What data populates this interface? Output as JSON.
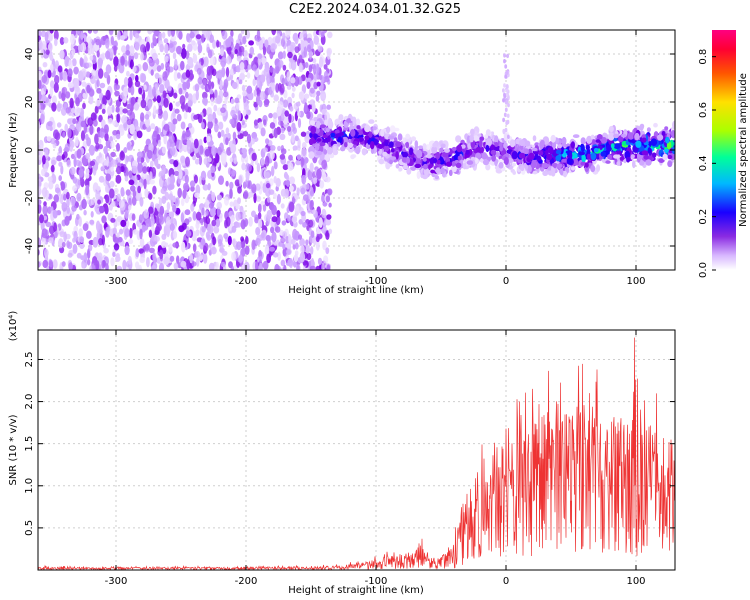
{
  "title": "C2E2.2024.034.01.32.G25",
  "chart_data": [
    {
      "type": "heatmap",
      "xlabel": "Height of straight line (km)",
      "ylabel": "Frequency (Hz)",
      "xlim": [
        -360,
        130
      ],
      "ylim": [
        -50,
        50
      ],
      "x_ticks": [
        -300,
        -200,
        -100,
        0,
        100
      ],
      "y_ticks": [
        -40,
        -20,
        0,
        20,
        40
      ],
      "colorbar": {
        "label": "Normalized spectral amplitude",
        "range": [
          0,
          0.9
        ],
        "ticks": [
          "0.0",
          "0.2",
          "0.4",
          "0.6",
          "0.8"
        ],
        "colormap": [
          "#ffffff",
          "#c89bff",
          "#7b00e6",
          "#1a00ff",
          "#00ccff",
          "#00ff66",
          "#c8ff00",
          "#ffcc00",
          "#ff2200",
          "#ff0080"
        ]
      },
      "noise_region": {
        "x": [
          -360,
          -135
        ],
        "y": [
          -50,
          50
        ],
        "amplitude": "low (0.05–0.2)"
      },
      "signal_ridge": {
        "x": [
          -150,
          -120,
          -100,
          -80,
          -60,
          -40,
          -20,
          0,
          20,
          40,
          60,
          80,
          100,
          130
        ],
        "frequency": [
          5,
          6,
          4,
          -1,
          -6,
          -3,
          1,
          -1,
          -3,
          -2,
          -2,
          1,
          2,
          2
        ],
        "peak_amplitude": [
          0.35,
          0.38,
          0.32,
          0.3,
          0.3,
          0.35,
          0.3,
          0.25,
          0.35,
          0.45,
          0.5,
          0.55,
          0.6,
          0.55
        ]
      }
    },
    {
      "type": "line",
      "xlabel": "Height of straight line (km)",
      "ylabel": "SNR (10 * v/v)",
      "y_multiplier": "(x10⁴)",
      "xlim": [
        -360,
        130
      ],
      "ylim": [
        0,
        2.85
      ],
      "x_ticks": [
        -300,
        -200,
        -100,
        0,
        100
      ],
      "y_ticks": [
        "0.5",
        "1.0",
        "1.5",
        "2.0",
        "2.5"
      ],
      "color": "#ee3333",
      "series": [
        {
          "x": [
            -360,
            -300,
            -200,
            -150,
            -125,
            -110,
            -100,
            -90,
            -80,
            -75,
            -70,
            -65,
            -60,
            -55,
            -50,
            -45,
            -40,
            -35,
            -30,
            -20,
            -10,
            0,
            10,
            20,
            30,
            40,
            50,
            60,
            70,
            80,
            90,
            100,
            110,
            120,
            130
          ],
          "y_mean": [
            0.02,
            0.02,
            0.02,
            0.02,
            0.03,
            0.05,
            0.07,
            0.08,
            0.08,
            0.12,
            0.1,
            0.15,
            0.08,
            0.09,
            0.1,
            0.12,
            0.15,
            0.3,
            0.6,
            0.6,
            0.75,
            0.85,
            0.95,
            1.05,
            1.15,
            1.25,
            1.2,
            1.3,
            1.25,
            1.2,
            1.15,
            1.05,
            1.0,
            0.9,
            0.95
          ],
          "y_peak": [
            0.05,
            0.04,
            0.05,
            0.05,
            0.08,
            0.12,
            0.2,
            0.25,
            0.22,
            0.35,
            0.28,
            0.6,
            0.18,
            0.2,
            0.22,
            0.3,
            0.4,
            1.05,
            1.35,
            1.7,
            1.6,
            1.75,
            2.2,
            2.3,
            2.45,
            2.75,
            2.5,
            2.55,
            2.4,
            2.2,
            2.45,
            2.85,
            2.4,
            2.15,
            2.1
          ]
        }
      ]
    }
  ]
}
